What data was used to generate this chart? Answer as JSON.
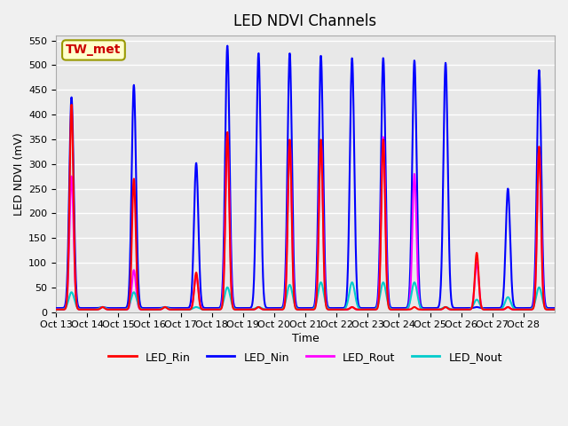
{
  "title": "LED NDVI Channels",
  "xlabel": "Time",
  "ylabel": "LED NDVI (mV)",
  "ylim": [
    0,
    560
  ],
  "yticks": [
    0,
    50,
    100,
    150,
    200,
    250,
    300,
    350,
    400,
    450,
    500,
    550
  ],
  "xtick_labels": [
    "Oct 13",
    "Oct 14",
    "Oct 15",
    "Oct 16",
    "Oct 17",
    "Oct 18",
    "Oct 19",
    "Oct 20",
    "Oct 21",
    "Oct 22",
    "Oct 23",
    "Oct 24",
    "Oct 25",
    "Oct 26",
    "Oct 27",
    "Oct 28"
  ],
  "annotation_text": "TW_met",
  "annotation_text_color": "#cc0000",
  "annotation_box_color": "#ffffcc",
  "annotation_box_edge": "#999900",
  "colors": {
    "LED_Rin": "#ff0000",
    "LED_Nin": "#0000ff",
    "LED_Rout": "#ff00ff",
    "LED_Nout": "#00cccc"
  },
  "line_widths": {
    "LED_Rin": 1.5,
    "LED_Nin": 1.5,
    "LED_Rout": 1.5,
    "LED_Nout": 1.5
  },
  "bg_color": "#e8e8e8",
  "grid_color": "#ffffff",
  "num_days": 16,
  "peaks_Nin": [
    435,
    10,
    460,
    10,
    302,
    540,
    525,
    525,
    520,
    515,
    515,
    510,
    505,
    10,
    250,
    490
  ],
  "peaks_Rin": [
    420,
    10,
    270,
    10,
    80,
    365,
    10,
    350,
    350,
    10,
    350,
    10,
    10,
    120,
    10,
    335
  ],
  "peaks_Rout": [
    275,
    10,
    85,
    10,
    75,
    360,
    10,
    345,
    345,
    10,
    355,
    280,
    10,
    100,
    10,
    330
  ],
  "peaks_Nout": [
    40,
    10,
    40,
    10,
    10,
    50,
    10,
    55,
    60,
    60,
    60,
    60,
    10,
    25,
    30,
    50
  ]
}
